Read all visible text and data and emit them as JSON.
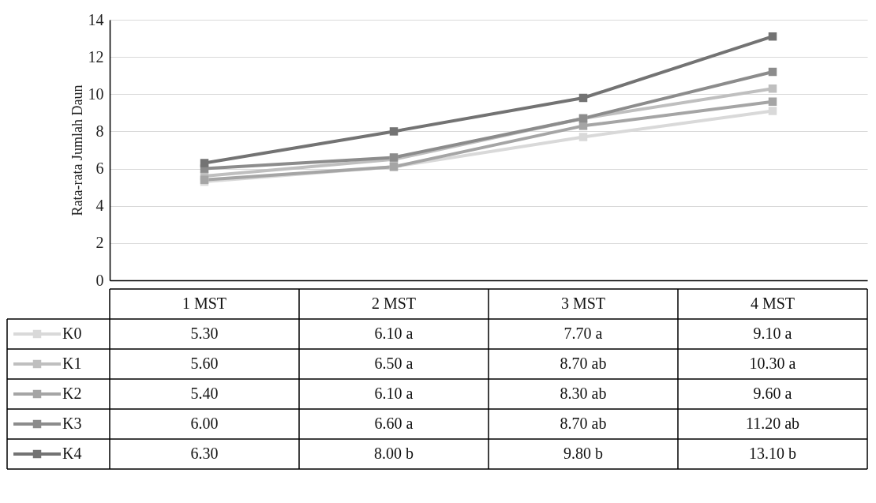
{
  "chart_data": {
    "type": "line",
    "ylabel": "Rata-rata Jumlah Daun",
    "categories": [
      "1 MST",
      "2 MST",
      "3 MST",
      "4 MST"
    ],
    "series": [
      {
        "name": "K0",
        "color": "#d9d9d9",
        "values": [
          5.3,
          6.1,
          7.7,
          9.1
        ],
        "value_labels": [
          "5.30",
          "6.10  a",
          "7.70  a",
          "9.10  a"
        ]
      },
      {
        "name": "K1",
        "color": "#bfbfbf",
        "values": [
          5.6,
          6.5,
          8.7,
          10.3
        ],
        "value_labels": [
          "5.60",
          "6.50  a",
          "8.70  ab",
          "10.30  a"
        ]
      },
      {
        "name": "K2",
        "color": "#a5a5a5",
        "values": [
          5.4,
          6.1,
          8.3,
          9.6
        ],
        "value_labels": [
          "5.40",
          "6.10  a",
          "8.30  ab",
          "9.60  a"
        ]
      },
      {
        "name": "K3",
        "color": "#8c8c8c",
        "values": [
          6.0,
          6.6,
          8.7,
          11.2
        ],
        "value_labels": [
          "6.00",
          "6.60  a",
          "8.70  ab",
          "11.20  ab"
        ]
      },
      {
        "name": "K4",
        "color": "#737373",
        "values": [
          6.3,
          8.0,
          9.8,
          13.1
        ],
        "value_labels": [
          "6.30",
          "8.00  b",
          "9.80  b",
          "13.10  b"
        ]
      }
    ],
    "ylim": [
      0,
      14
    ],
    "yticks": [
      0,
      2,
      4,
      6,
      8,
      10,
      12,
      14
    ],
    "grid": "y",
    "legend": "bottom",
    "marker": "square",
    "line_style": "solid",
    "tick_labels": "y"
  }
}
